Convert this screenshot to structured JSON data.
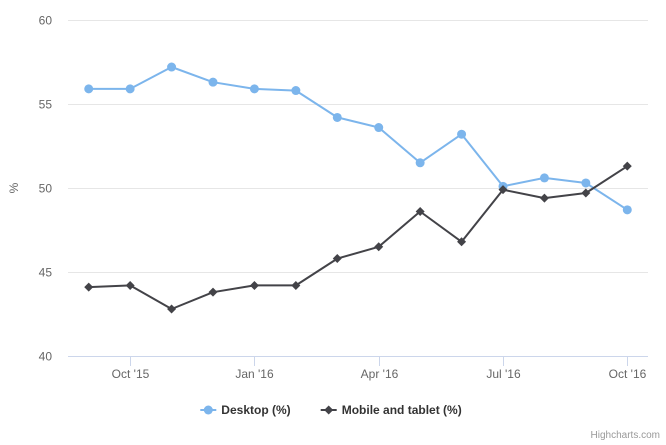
{
  "chart_data": {
    "type": "line",
    "ylabel": "%",
    "ylim": [
      40,
      60
    ],
    "yticks": [
      40,
      45,
      50,
      55,
      60
    ],
    "x": [
      "2015-09",
      "2015-10",
      "2015-11",
      "2015-12",
      "2016-01",
      "2016-02",
      "2016-03",
      "2016-04",
      "2016-05",
      "2016-06",
      "2016-07",
      "2016-08",
      "2016-09",
      "2016-10"
    ],
    "xticks": [
      {
        "label": "Oct '15",
        "at": "2015-10"
      },
      {
        "label": "Jan '16",
        "at": "2016-01"
      },
      {
        "label": "Apr '16",
        "at": "2016-04"
      },
      {
        "label": "Jul '16",
        "at": "2016-07"
      },
      {
        "label": "Oct '16",
        "at": "2016-10"
      }
    ],
    "grid": true,
    "legend_position": "bottom-center",
    "series": [
      {
        "name": "Desktop (%)",
        "color": "#7cb5ec",
        "marker": "circle",
        "values": [
          55.9,
          55.9,
          57.2,
          56.3,
          55.9,
          55.8,
          54.2,
          53.6,
          51.5,
          53.2,
          50.1,
          50.6,
          50.3,
          48.7
        ]
      },
      {
        "name": "Mobile and tablet (%)",
        "color": "#434348",
        "marker": "diamond",
        "values": [
          44.1,
          44.2,
          42.8,
          43.8,
          44.2,
          44.2,
          45.8,
          46.5,
          48.6,
          46.8,
          49.9,
          49.4,
          49.7,
          51.3
        ]
      }
    ]
  },
  "credits": "Highcharts.com"
}
